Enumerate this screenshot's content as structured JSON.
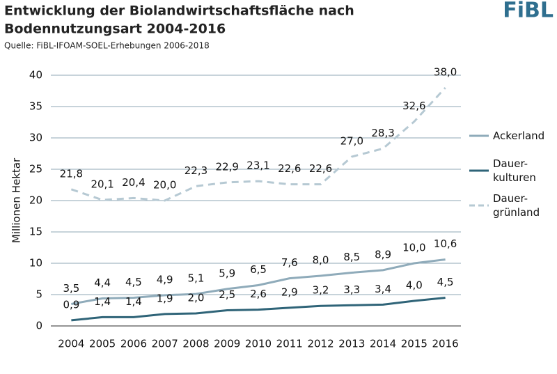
{
  "logo": "FiBL",
  "chart_data": {
    "type": "line",
    "title": [
      "Entwicklung der Biolandwirtschaftsfläche nach",
      "Bodennutzungsart 2004-2016"
    ],
    "subtitle": "Quelle: FiBL-IFOAM-SOEL-Erhebungen 2006-2018",
    "y_label": "Millionen Hektar",
    "categories": [
      "2004",
      "2005",
      "2006",
      "2007",
      "2008",
      "2009",
      "2010",
      "2011",
      "2012",
      "2013",
      "2014",
      "2015",
      "2016"
    ],
    "ylim": [
      0,
      40
    ],
    "yticks": [
      0,
      5,
      10,
      15,
      20,
      25,
      30,
      35,
      40
    ],
    "grid": true,
    "series": [
      {
        "name": "Ackerland",
        "color": "#8fabba",
        "dashed": false,
        "values": [
          3.5,
          4.4,
          4.5,
          4.9,
          5.1,
          5.9,
          6.5,
          7.6,
          8.0,
          8.5,
          8.9,
          10.0,
          10.6
        ],
        "value_labels": [
          "3,5",
          "4,4",
          "4,5",
          "4,9",
          "5,1",
          "5,9",
          "6,5",
          "7,6",
          "8,0",
          "8,5",
          "8,9",
          "10,0",
          "10,6"
        ]
      },
      {
        "name": "Dauer-\nkulturen",
        "color": "#2f6478",
        "dashed": false,
        "values": [
          0.9,
          1.4,
          1.4,
          1.9,
          2.0,
          2.5,
          2.6,
          2.9,
          3.2,
          3.3,
          3.4,
          4.0,
          4.5
        ],
        "value_labels": [
          "0,9",
          "1,4",
          "1,4",
          "1,9",
          "2,0",
          "2,5",
          "2,6",
          "2,9",
          "3,2",
          "3,3",
          "3,4",
          "4,0",
          "4,5"
        ]
      },
      {
        "name": "Dauer-\ngrünland",
        "color": "#b6c9d3",
        "dashed": true,
        "values": [
          21.8,
          20.1,
          20.4,
          20.0,
          22.3,
          22.9,
          23.1,
          22.6,
          22.6,
          27.0,
          28.3,
          32.6,
          38.0
        ],
        "value_labels": [
          "21,8",
          "20,1",
          "20,4",
          "20,0",
          "22,3",
          "22,9",
          "23,1",
          "22,6",
          "22,6",
          "27,0",
          "28,3",
          "32,6",
          "38,0"
        ]
      }
    ]
  }
}
